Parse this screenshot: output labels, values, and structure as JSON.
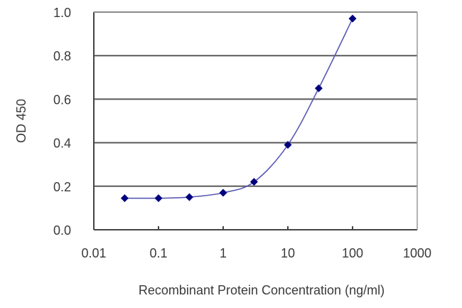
{
  "chart_data": {
    "type": "line",
    "title": "",
    "xlabel": "Recombinant Protein Concentration (ng/ml)",
    "ylabel": "OD 450",
    "x_scale": "log",
    "xlim": [
      0.01,
      1000
    ],
    "ylim": [
      0.0,
      1.0
    ],
    "x_ticks": [
      "0.01",
      "0.1",
      "1",
      "10",
      "100",
      "1000"
    ],
    "y_ticks": [
      "0.0",
      "0.2",
      "0.4",
      "0.6",
      "0.8",
      "1.0"
    ],
    "grid": {
      "horizontal": true,
      "vertical": false
    },
    "legend": null,
    "series": [
      {
        "name": "OD 450",
        "color": "#00007f",
        "line_color": "#5a5ab4",
        "marker": "diamond",
        "x": [
          0.03,
          0.1,
          0.3,
          1,
          3,
          10,
          30,
          100
        ],
        "values": [
          0.145,
          0.145,
          0.15,
          0.17,
          0.22,
          0.39,
          0.65,
          0.97
        ]
      }
    ]
  },
  "colors": {
    "gridline": "#5a5a5a",
    "frame": "#444444",
    "marker": "#00007f",
    "line": "#5a5ab4"
  }
}
